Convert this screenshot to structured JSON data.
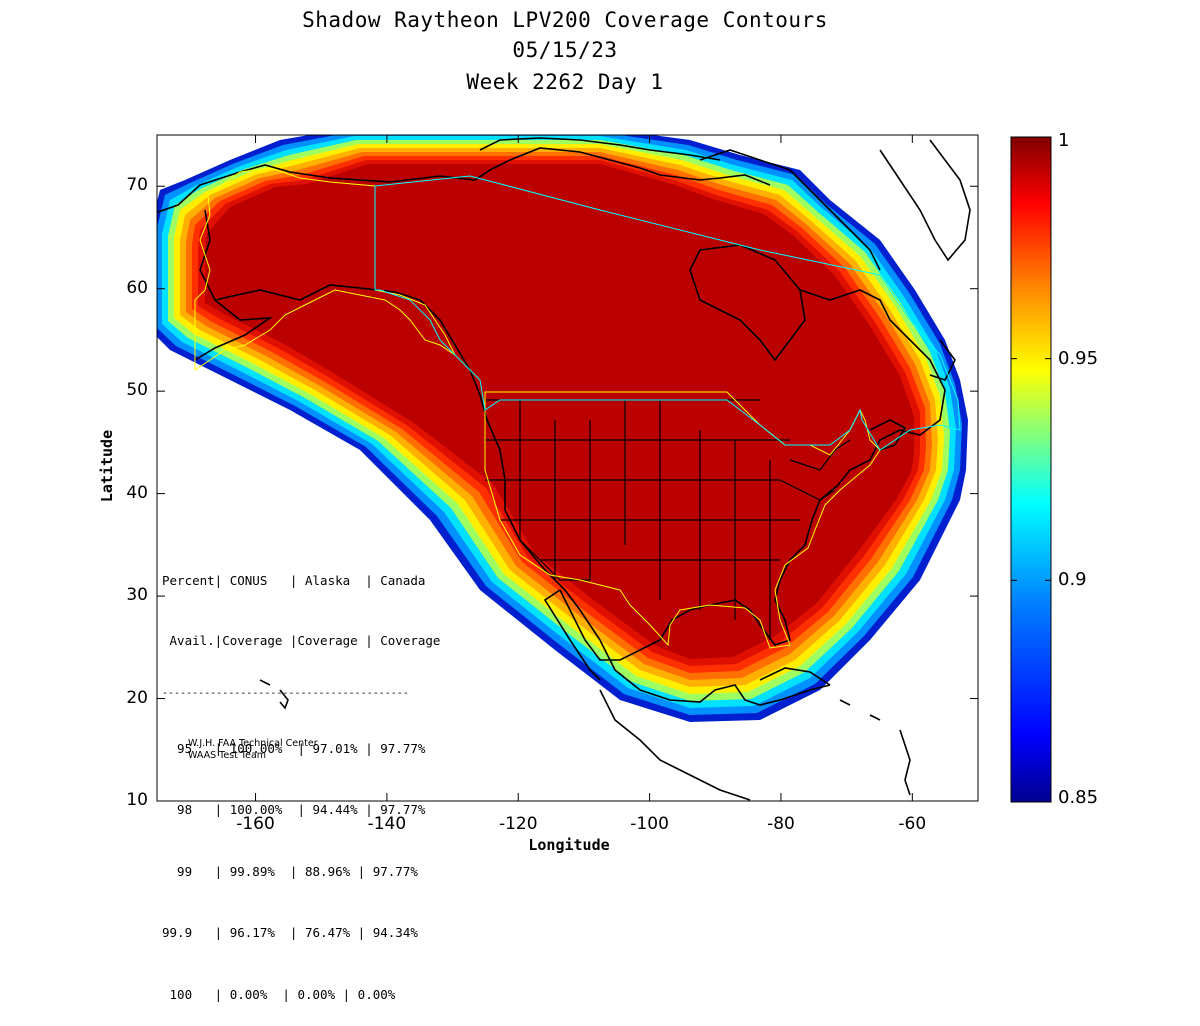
{
  "title": {
    "line1": "Shadow Raytheon LPV200 Coverage Contours",
    "line2": "05/15/23",
    "line3": "Week 2262 Day 1"
  },
  "axes": {
    "xlabel": "Longitude",
    "ylabel": "Latitude",
    "xlim": [
      -175,
      -50
    ],
    "ylim": [
      10,
      75
    ],
    "xticks": [
      -160,
      -140,
      -120,
      -100,
      -80,
      -60
    ],
    "yticks": [
      10,
      20,
      30,
      40,
      50,
      60,
      70
    ],
    "xtick_labels": [
      "-160",
      "-140",
      "-120",
      "-100",
      "-80",
      "-60"
    ],
    "ytick_labels": [
      "10",
      "20",
      "30",
      "40",
      "50",
      "60",
      "70"
    ]
  },
  "colorbar": {
    "range": [
      0.85,
      1
    ],
    "tick_labels": [
      "1",
      "0.95",
      "0.9",
      "0.85"
    ],
    "tick_values": [
      1,
      0.95,
      0.9,
      0.85
    ],
    "colors": [
      "#00008f",
      "#0000ff",
      "#0080ff",
      "#00ffff",
      "#80ff80",
      "#ffff00",
      "#ff8000",
      "#ff0000",
      "#800000"
    ]
  },
  "coverage_colors": {
    "full": "#bb0000",
    "band1": "#e01000",
    "band2": "#ff3000",
    "band3": "#ff7000",
    "band4": "#ffb000",
    "band5": "#ffee00",
    "band6": "#a0ff60",
    "band7": "#00e0ff",
    "band8": "#0090ff",
    "band9": "#0020d0"
  },
  "stats_table": {
    "header1": "Percent| CONUS   | Alaska  | Canada",
    "header2": " Avail.|Coverage |Coverage | Coverage",
    "divider": "-----------------------------------------",
    "rows": [
      "  95   | 100.00%  | 97.01% | 97.77%",
      "  98   | 100.00%  | 94.44% | 97.77%",
      "  99   | 99.89%  | 88.96% | 97.77%",
      "99.9   | 96.17%  | 76.47% | 94.34%",
      " 100   | 0.00%  | 0.00% | 0.00%"
    ]
  },
  "credits": {
    "line1": "W.J.H. FAA Technical Center",
    "line2": "WAAS Test Team"
  }
}
